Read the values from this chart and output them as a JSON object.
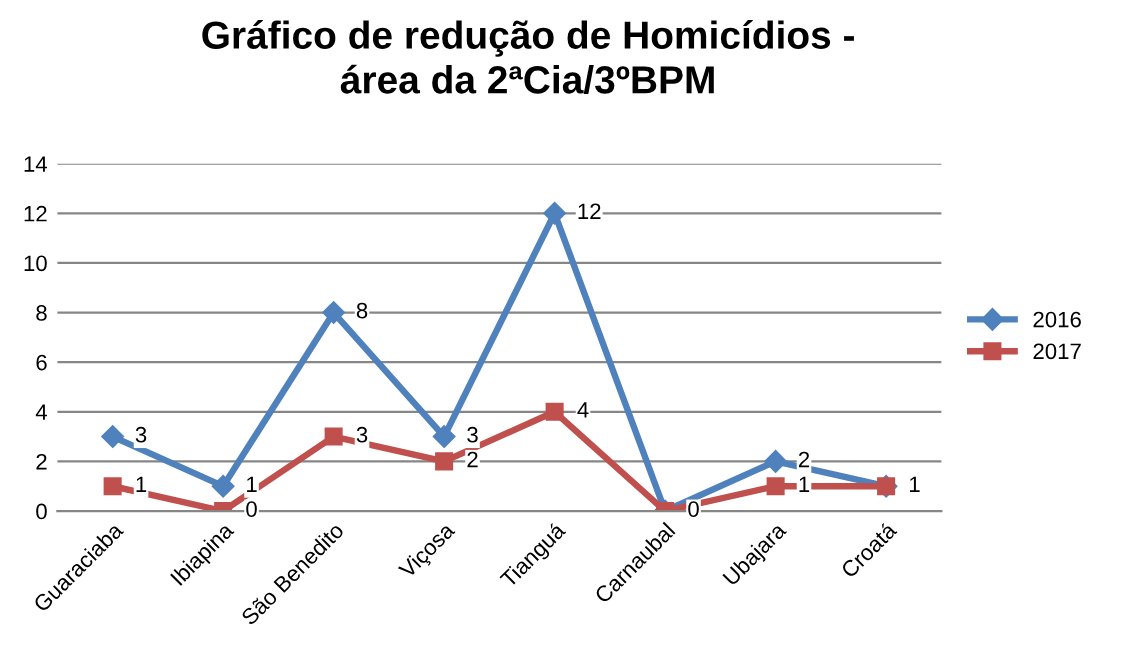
{
  "chart_data": {
    "type": "line",
    "title": "Gráfico de redução de Homicídios -\nárea da 2ªCia/3ºBPM",
    "categories": [
      "Guaraciaba",
      "Ibiapina",
      "São Benedito",
      "Viçosa",
      "Tianguá",
      "Carnaubal",
      "Ubajara",
      "Croatá"
    ],
    "series": [
      {
        "name": "2016",
        "color": "#4f81bd",
        "marker": "diamond",
        "values": [
          3,
          1,
          8,
          3,
          12,
          0,
          2,
          1
        ],
        "value_labels": [
          "3",
          "1",
          "8",
          "3",
          "12",
          "0",
          "2",
          "1"
        ]
      },
      {
        "name": "2017",
        "color": "#c0504d",
        "marker": "square",
        "values": [
          1,
          0,
          3,
          2,
          4,
          0,
          1,
          1
        ],
        "value_labels": [
          "1",
          "0",
          "3",
          "2",
          "4",
          null,
          "1",
          null
        ]
      }
    ],
    "ylim": [
      0,
      14
    ],
    "yticks": [
      0,
      2,
      4,
      6,
      8,
      10,
      12,
      14
    ],
    "grid": "y",
    "legend": "right",
    "line_style": "solid"
  }
}
